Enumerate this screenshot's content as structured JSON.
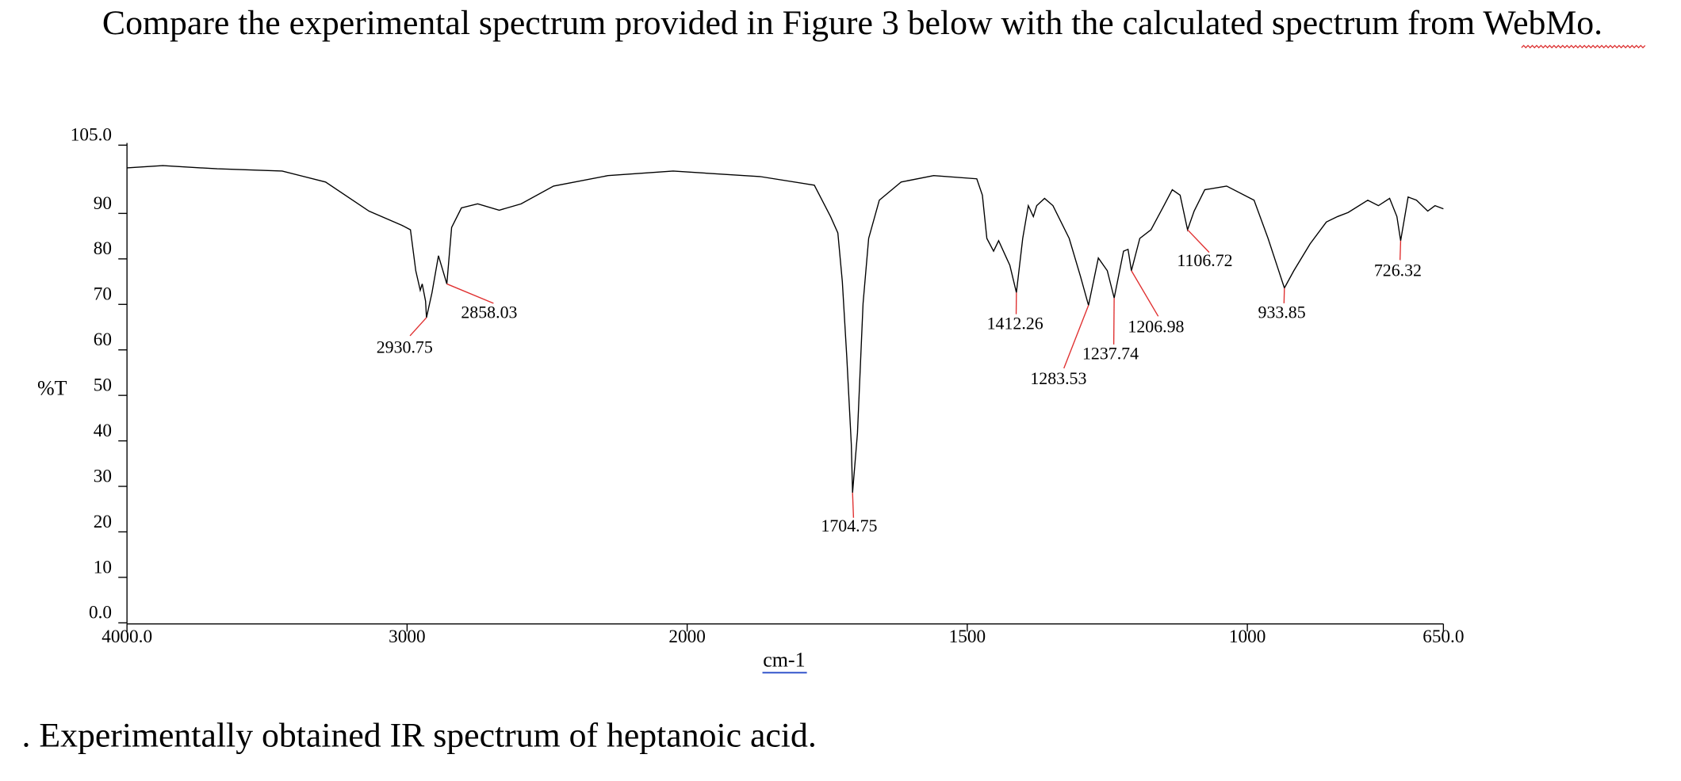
{
  "title": "Compare the experimental spectrum provided in Figure 3 below with the calculated spectrum from WebMo.",
  "chart_data": {
    "type": "line",
    "xlabel": "cm-1",
    "ylabel": "%T",
    "xlim": [
      4000,
      650
    ],
    "ylim": [
      0,
      105
    ],
    "x_scale_break": 2000,
    "xticks": [
      {
        "value": 4000,
        "label": "4000.0"
      },
      3000,
      2000,
      1500,
      1000,
      {
        "value": 650,
        "label": "650.0"
      }
    ],
    "yticks": [
      {
        "value": 105,
        "label": "105.0"
      },
      90,
      80,
      70,
      60,
      50,
      40,
      30,
      20,
      10,
      {
        "value": 0,
        "label": "0.0"
      }
    ],
    "color": "#000000",
    "annotation_color": "#e03030",
    "x": [
      4000,
      3872,
      3678,
      3446,
      3291,
      3136,
      3019,
      2988,
      2969,
      2953,
      2946,
      2934,
      2930.75,
      2911,
      2888,
      2872,
      2858.03,
      2841,
      2806,
      2748,
      2671,
      2593,
      2477,
      2283,
      2050,
      1870,
      1773,
      1744,
      1731,
      1723,
      1715,
      1707,
      1704.75,
      1696,
      1686,
      1676,
      1657,
      1618,
      1560,
      1483,
      1473,
      1465,
      1453,
      1444,
      1424,
      1412.26,
      1401,
      1391,
      1382,
      1376,
      1362,
      1347,
      1318,
      1298,
      1283.53,
      1266,
      1250,
      1237.74,
      1221,
      1213,
      1206.98,
      1192,
      1172,
      1149,
      1134,
      1120,
      1106.72,
      1095,
      1076,
      1037,
      988,
      963,
      944,
      933.85,
      917,
      888,
      859,
      839,
      820,
      785,
      766,
      746,
      733,
      726.32,
      713,
      698,
      678,
      665,
      650
    ],
    "values": [
      100.0,
      100.5,
      99.8,
      99.3,
      96.9,
      90.5,
      87.4,
      86.4,
      77.4,
      73.1,
      74.5,
      70.7,
      67.1,
      72.6,
      80.7,
      77.4,
      74.5,
      86.9,
      91.2,
      92.1,
      90.7,
      92.1,
      96.0,
      98.3,
      99.3,
      98.1,
      96.2,
      89.3,
      85.7,
      75.0,
      58.3,
      39.3,
      28.6,
      41.7,
      70.2,
      84.5,
      92.9,
      96.9,
      98.3,
      97.6,
      94.0,
      84.5,
      81.7,
      84.0,
      78.6,
      72.6,
      84.5,
      91.7,
      89.3,
      91.7,
      93.3,
      91.7,
      84.5,
      76.2,
      69.8,
      80.2,
      77.4,
      71.4,
      81.7,
      82.1,
      77.4,
      84.5,
      86.4,
      91.7,
      95.2,
      94.0,
      86.4,
      90.5,
      95.2,
      96.0,
      92.9,
      84.5,
      77.4,
      73.6,
      77.4,
      83.3,
      88.1,
      89.3,
      90.2,
      92.9,
      91.7,
      93.3,
      89.3,
      84.0,
      93.6,
      92.9,
      90.5,
      91.7,
      91.0
    ],
    "annotations": [
      2930.75,
      2858.03,
      1704.75,
      1412.26,
      1283.53,
      1237.74,
      1206.98,
      1106.72,
      933.85,
      726.32
    ]
  },
  "caption": ". Experimentally obtained IR spectrum of heptanoic acid."
}
